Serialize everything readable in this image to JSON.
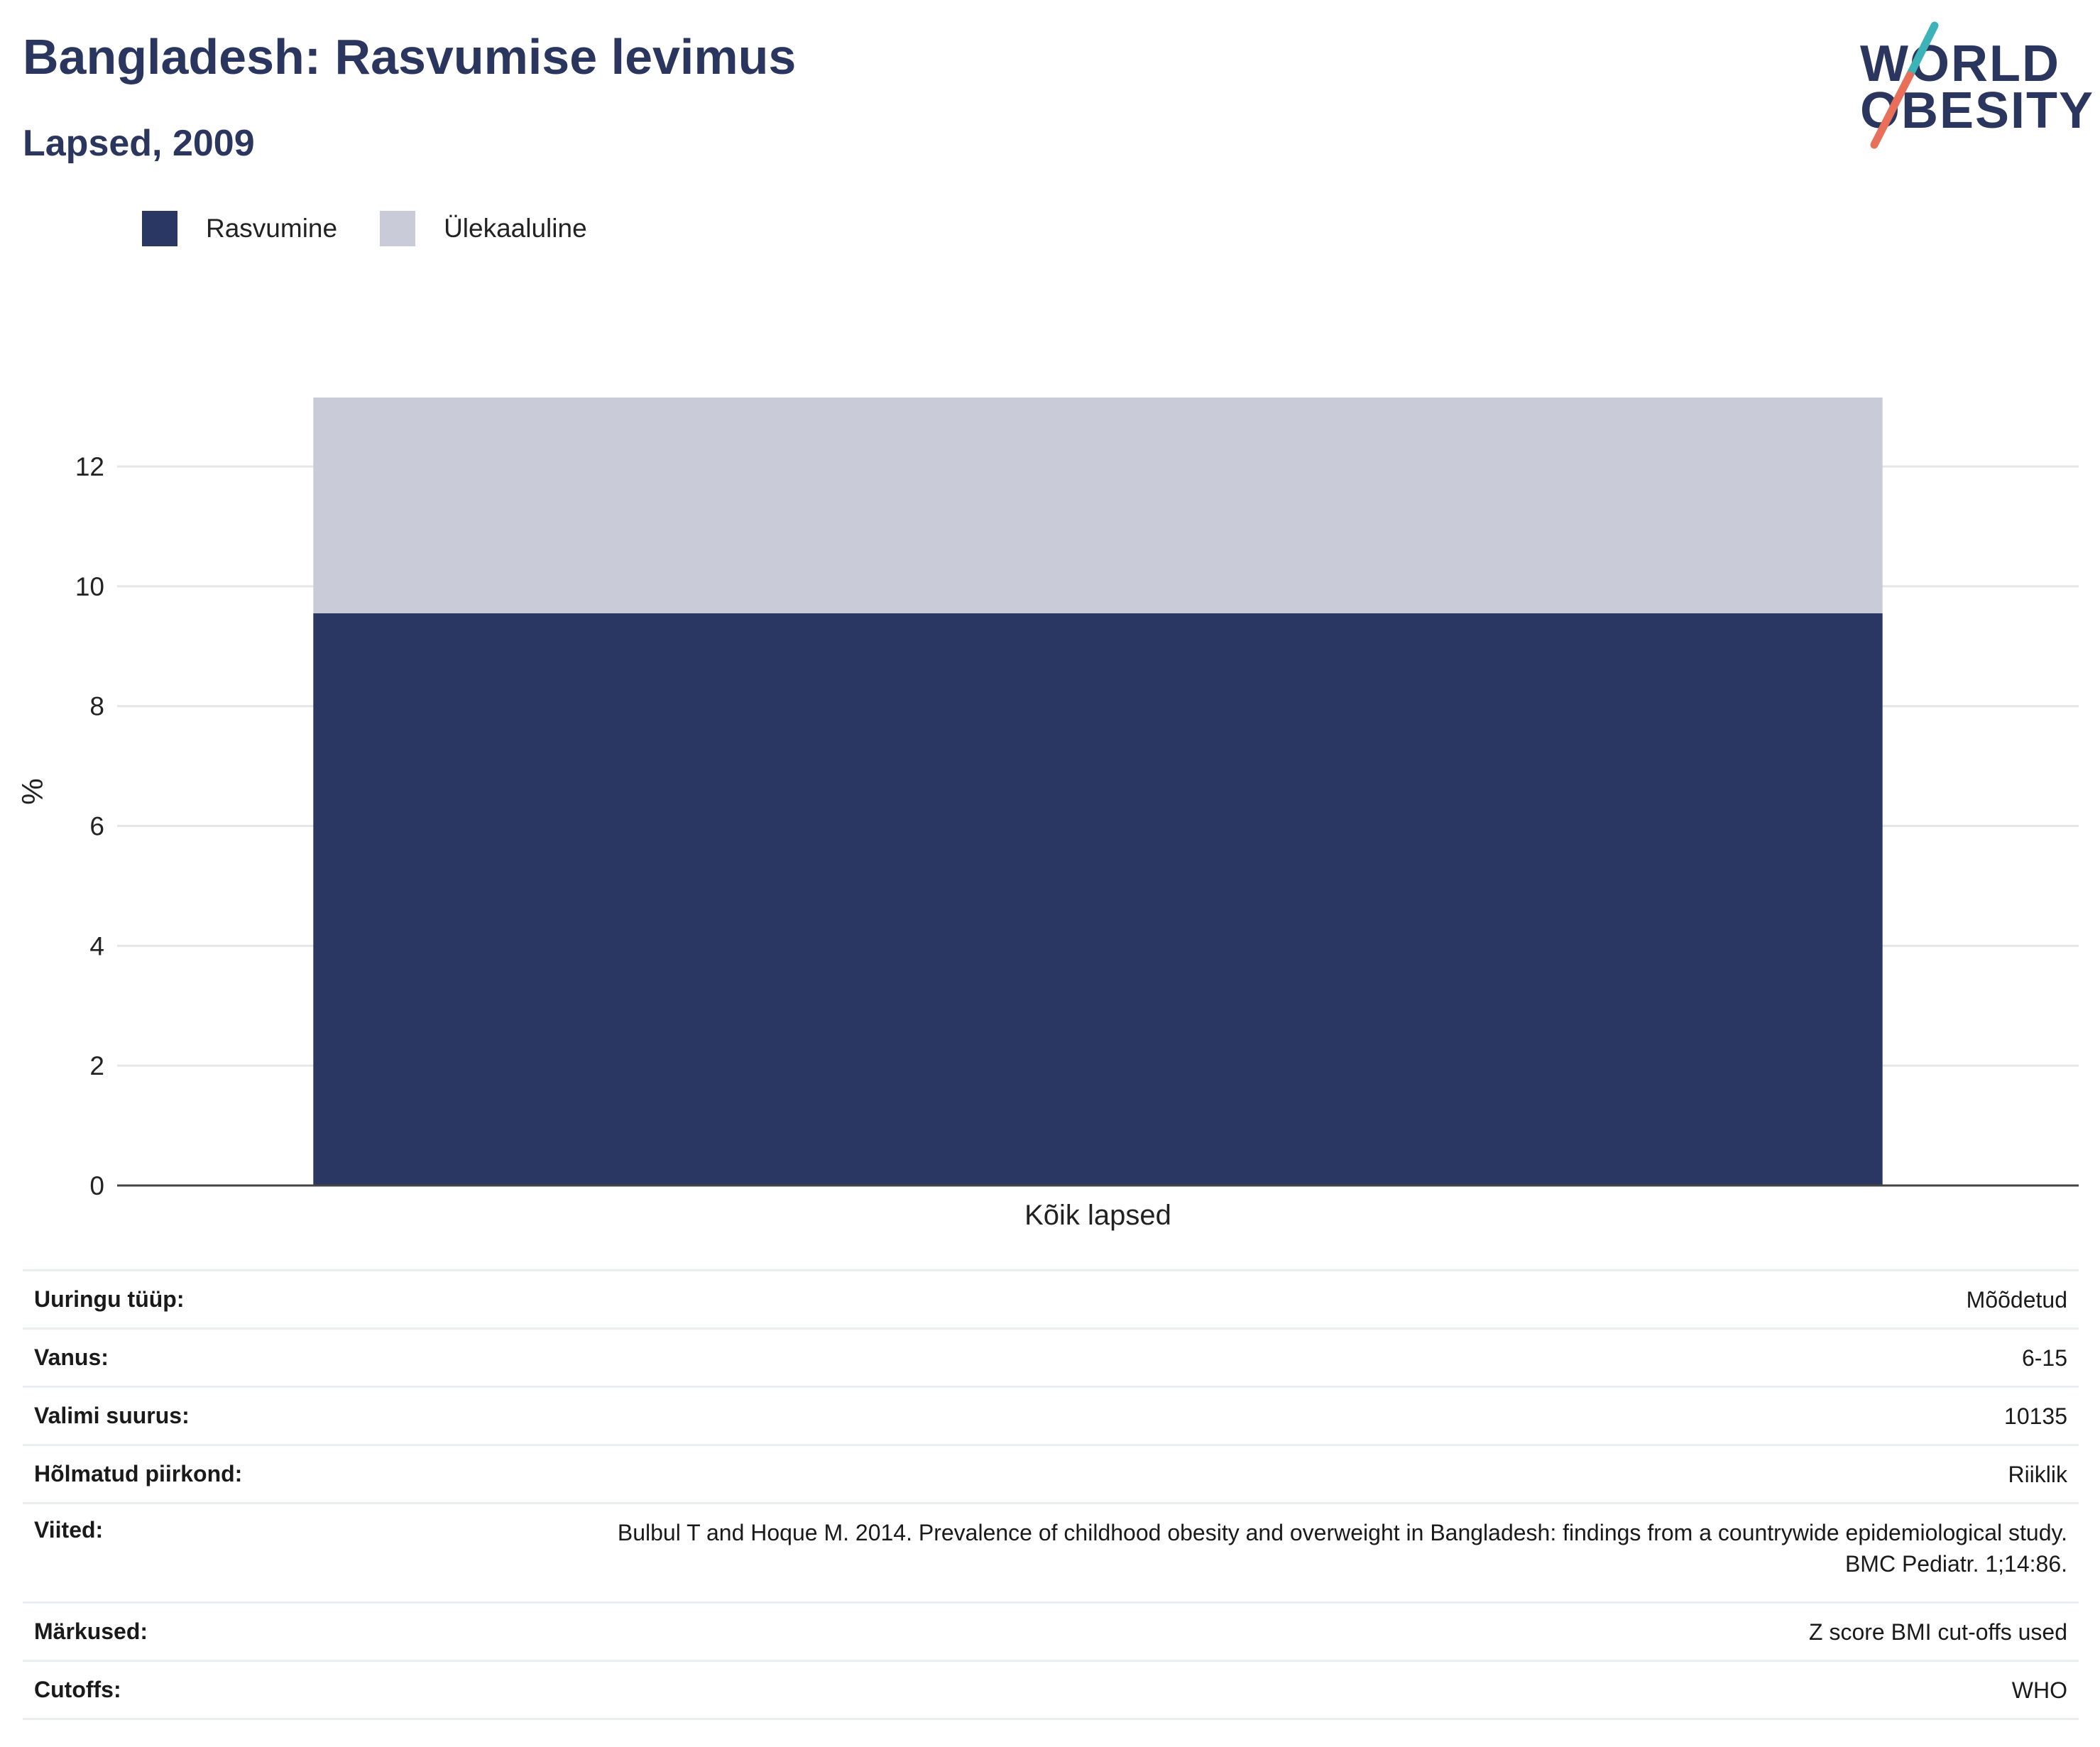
{
  "header": {
    "title": "Bangladesh: Rasvumise levimus",
    "subtitle": "Lapsed, 2009"
  },
  "logo": {
    "line1": "WORLD",
    "line2": "OBESITY",
    "colors": {
      "text": "#2b365f",
      "slash_top": "#3bb3b8",
      "slash_bottom": "#e8705a"
    }
  },
  "chart_data": {
    "type": "bar",
    "stacked": true,
    "categories": [
      "Kõik lapsed"
    ],
    "series": [
      {
        "name": "Rasvumine",
        "values": [
          9.55
        ],
        "color": "#2b3763"
      },
      {
        "name": "Ülekaaluline",
        "values": [
          3.6
        ],
        "color": "#c9ccd8"
      }
    ],
    "xlabel": "",
    "ylabel": "%",
    "ylim": [
      0,
      13.15
    ],
    "yticks": [
      0,
      2,
      4,
      6,
      8,
      10,
      12
    ],
    "grid": true,
    "legend_position": "top-left"
  },
  "details": {
    "rows": [
      {
        "label": "Uuringu tüüp:",
        "value": "Mõõdetud"
      },
      {
        "label": "Vanus:",
        "value": "6-15"
      },
      {
        "label": "Valimi suurus:",
        "value": "10135"
      },
      {
        "label": "Hõlmatud piirkond:",
        "value": "Riiklik"
      },
      {
        "label": "Viited:",
        "value": "Bulbul T and Hoque M. 2014. Prevalence of childhood obesity and overweight in Bangladesh: findings from a countrywide epidemiological study. BMC Pediatr. 1;14:86."
      },
      {
        "label": "Märkused:",
        "value": "Z score BMI cut-offs used"
      },
      {
        "label": "Cutoffs:",
        "value": "WHO"
      }
    ]
  }
}
